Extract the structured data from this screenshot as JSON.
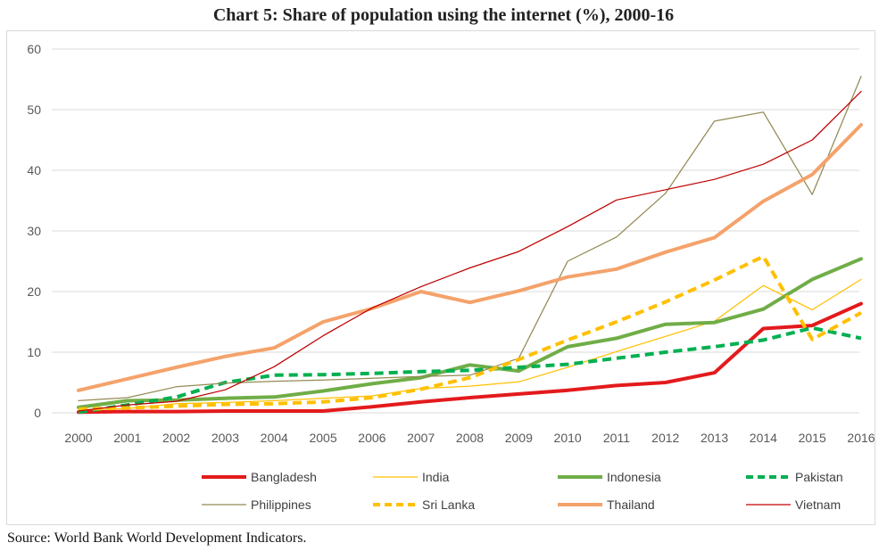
{
  "title": "Chart 5: Share of population using the internet (%), 2000-16",
  "source": "Source: World Bank World Development Indicators.",
  "chart_data": {
    "type": "line",
    "title": "Chart 5: Share of population using the internet (%), 2000-16",
    "xlabel": "",
    "ylabel": "",
    "x": [
      "2000",
      "2001",
      "2002",
      "2003",
      "2004",
      "2005",
      "2006",
      "2007",
      "2008",
      "2009",
      "2010",
      "2011",
      "2012",
      "2013",
      "2014",
      "2015",
      "2016"
    ],
    "ylim": [
      0,
      60
    ],
    "yticks": [
      "0",
      "10",
      "20",
      "30",
      "40",
      "50",
      "60"
    ],
    "grid": "horizontal",
    "legend_position": "bottom",
    "series": [
      {
        "name": "Bangladesh",
        "color": "#e31a1c",
        "style": "solid-thick",
        "values": [
          0.1,
          0.2,
          0.2,
          0.3,
          0.3,
          0.3,
          1.0,
          1.8,
          2.5,
          3.1,
          3.7,
          4.5,
          5.0,
          6.6,
          13.9,
          14.4,
          18.0
        ]
      },
      {
        "name": "India",
        "color": "#ffc000",
        "style": "solid-thin",
        "values": [
          0.5,
          0.7,
          1.5,
          1.7,
          2.0,
          2.4,
          2.8,
          4.0,
          4.4,
          5.1,
          7.5,
          10.1,
          12.6,
          15.1,
          21.0,
          17.0,
          22.0
        ]
      },
      {
        "name": "Indonesia",
        "color": "#70ad47",
        "style": "solid-thick",
        "values": [
          0.9,
          2.0,
          2.1,
          2.4,
          2.6,
          3.6,
          4.8,
          5.8,
          7.9,
          6.9,
          10.9,
          12.3,
          14.6,
          14.9,
          17.1,
          22.0,
          25.4
        ]
      },
      {
        "name": "Pakistan",
        "color": "#00b050",
        "style": "dashed-thick",
        "values": [
          0.1,
          1.3,
          2.6,
          5.0,
          6.2,
          6.3,
          6.5,
          6.8,
          7.0,
          7.5,
          8.0,
          9.0,
          10.0,
          10.9,
          12.0,
          14.0,
          12.3
        ]
      },
      {
        "name": "Philippines",
        "color": "#948a54",
        "style": "solid-thin",
        "values": [
          2.0,
          2.5,
          4.3,
          4.9,
          5.2,
          5.4,
          5.7,
          6.0,
          6.2,
          9.0,
          25.0,
          29.0,
          36.2,
          48.1,
          49.6,
          36.0,
          55.5
        ]
      },
      {
        "name": "Sri Lanka",
        "color": "#ffc000",
        "style": "dashed-thick",
        "values": [
          0.6,
          0.8,
          1.1,
          1.4,
          1.5,
          1.8,
          2.5,
          3.9,
          5.8,
          8.8,
          12.0,
          15.0,
          18.3,
          21.9,
          25.8,
          12.1,
          16.5
        ]
      },
      {
        "name": "Thailand",
        "color": "#f4a26b",
        "style": "solid-thick",
        "values": [
          3.7,
          5.6,
          7.5,
          9.3,
          10.7,
          15.0,
          17.2,
          20.0,
          18.2,
          20.1,
          22.4,
          23.7,
          26.5,
          28.9,
          34.9,
          39.3,
          47.5
        ]
      },
      {
        "name": "Vietnam",
        "color": "#c00000",
        "style": "solid-thin",
        "values": [
          0.3,
          1.3,
          1.9,
          3.8,
          7.6,
          12.7,
          17.3,
          20.8,
          23.9,
          26.6,
          30.7,
          35.1,
          36.8,
          38.5,
          41.0,
          45.0,
          53.0
        ]
      }
    ]
  }
}
